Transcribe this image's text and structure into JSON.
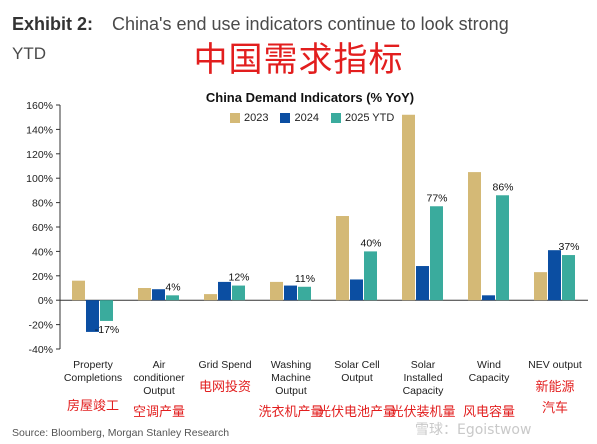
{
  "header": {
    "exhibit_label": "Exhibit 2:",
    "title_line1": "China's end use indicators continue to look strong",
    "title_line2": "YTD",
    "overlay_title": "中国需求指标"
  },
  "footer": {
    "source": "Source: Bloomberg, Morgan Stanley Research",
    "watermark": "雪球：Egoistwow"
  },
  "colors": {
    "2023": "#d4b976",
    "2024": "#0b4ea2",
    "2025 YTD": "#3aab9d"
  },
  "chart_data": {
    "type": "bar",
    "title": "China Demand Indicators (% YoY)",
    "ylim": [
      -40,
      160
    ],
    "yticks": [
      "-40%",
      "-20%",
      "0%",
      "20%",
      "40%",
      "60%",
      "80%",
      "100%",
      "120%",
      "140%",
      "160%"
    ],
    "grid": false,
    "legend_position": "top-center",
    "categories": [
      [
        "Property",
        "Completions"
      ],
      [
        "Air",
        "conditioner",
        "Output"
      ],
      [
        "Grid Spend"
      ],
      [
        "Washing",
        "Machine",
        "Output"
      ],
      [
        "Solar Cell",
        "Output"
      ],
      [
        "Solar",
        "Installed",
        "Capacity"
      ],
      [
        "Wind",
        "Capacity"
      ],
      [
        "NEV output"
      ]
    ],
    "categories_cn": [
      [
        "房屋竣工"
      ],
      [
        "空调产量"
      ],
      [
        "电网投资"
      ],
      [
        "洗衣机产量"
      ],
      [
        "光伏电池产量"
      ],
      [
        "光伏装机量"
      ],
      [
        "风电容量"
      ],
      [
        "新能源",
        "汽车"
      ]
    ],
    "series": [
      {
        "name": "2023",
        "values": [
          16,
          10,
          5,
          15,
          69,
          152,
          105,
          23
        ]
      },
      {
        "name": "2024",
        "values": [
          -26,
          9,
          15,
          12,
          17,
          28,
          4,
          41
        ]
      },
      {
        "name": "2025 YTD",
        "values": [
          -17,
          4,
          12,
          11,
          40,
          77,
          86,
          37
        ]
      }
    ],
    "data_labels": [
      "-17%",
      "4%",
      "12%",
      "11%",
      "40%",
      "77%",
      "86%",
      "37%"
    ]
  }
}
